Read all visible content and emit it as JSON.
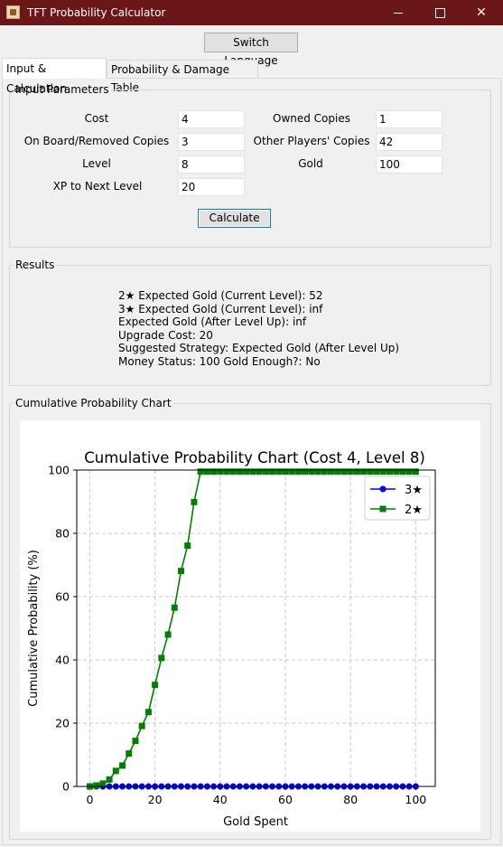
{
  "window": {
    "title": "TFT Probability Calculator"
  },
  "toolbar": {
    "switch_language_label": "Switch Language"
  },
  "tabs": [
    {
      "label": "Input & Calculation",
      "active": true
    },
    {
      "label": "Probability & Damage Table",
      "active": false
    }
  ],
  "params": {
    "legend": "Input Parameters",
    "cost": {
      "label": "Cost",
      "value": "4"
    },
    "owned": {
      "label": "Owned Copies",
      "value": "1"
    },
    "on_board": {
      "label": "On Board/Removed Copies",
      "value": "3"
    },
    "other_players": {
      "label": "Other Players' Copies",
      "value": "42"
    },
    "level": {
      "label": "Level",
      "value": "8"
    },
    "gold": {
      "label": "Gold",
      "value": "100"
    },
    "xp": {
      "label": "XP to Next Level",
      "value": "20"
    },
    "calculate_label": "Calculate"
  },
  "results": {
    "legend": "Results",
    "lines": [
      "2★ Expected Gold (Current Level): 52",
      "3★ Expected Gold (Current Level): inf",
      "Expected Gold (After Level Up): inf",
      "Upgrade Cost: 20",
      "Suggested Strategy: Expected Gold (After Level Up)",
      "Money Status: 100 Gold Enough?: No"
    ]
  },
  "chart_group": {
    "legend": "Cumulative Probability Chart"
  },
  "chart_data": {
    "type": "line",
    "title": "Cumulative Probability Chart (Cost 4, Level 8)",
    "xlabel": "Gold Spent",
    "ylabel": "Cumulative Probability (%)",
    "xlim": [
      -4,
      106
    ],
    "ylim": [
      0,
      100
    ],
    "xticks": [
      0,
      20,
      40,
      60,
      80,
      100
    ],
    "yticks": [
      0,
      20,
      40,
      60,
      80,
      100
    ],
    "grid": true,
    "legend_position": "top-right",
    "x": [
      0,
      2,
      4,
      6,
      8,
      10,
      12,
      14,
      16,
      18,
      20,
      22,
      24,
      26,
      28,
      30,
      32,
      34,
      36,
      38,
      40,
      42,
      44,
      46,
      48,
      50,
      52,
      54,
      56,
      58,
      60,
      62,
      64,
      66,
      68,
      70,
      72,
      74,
      76,
      78,
      80,
      82,
      84,
      86,
      88,
      90,
      92,
      94,
      96,
      98,
      100
    ],
    "series": [
      {
        "name": "3★",
        "color": "#0000ff",
        "marker": "circle",
        "values": [
          0,
          0,
          0,
          0,
          0,
          0,
          0,
          0,
          0,
          0,
          0,
          0,
          0,
          0,
          0,
          0,
          0,
          0,
          0,
          0,
          0,
          0,
          0,
          0,
          0,
          0,
          0,
          0,
          0,
          0,
          0,
          0,
          0,
          0,
          0,
          0,
          0,
          0,
          0,
          0,
          0,
          0,
          0,
          0,
          0,
          0,
          0,
          0,
          0,
          0,
          0
        ]
      },
      {
        "name": "2★",
        "color": "#008000",
        "marker": "square",
        "values": [
          0,
          0.3,
          0.9,
          2.2,
          4.9,
          6.6,
          10.4,
          14.4,
          19.1,
          23.5,
          32.1,
          40.6,
          48.0,
          56.5,
          68.1,
          76.1,
          89.9,
          99.5,
          99.5,
          99.5,
          99.5,
          99.5,
          99.5,
          99.5,
          99.5,
          99.5,
          99.5,
          99.5,
          99.5,
          99.5,
          99.5,
          99.5,
          99.5,
          99.5,
          99.5,
          99.5,
          99.5,
          99.5,
          99.5,
          99.5,
          99.5,
          99.5,
          99.5,
          99.5,
          99.5,
          99.5,
          99.5,
          99.5,
          99.5,
          99.5,
          99.5
        ]
      }
    ]
  }
}
